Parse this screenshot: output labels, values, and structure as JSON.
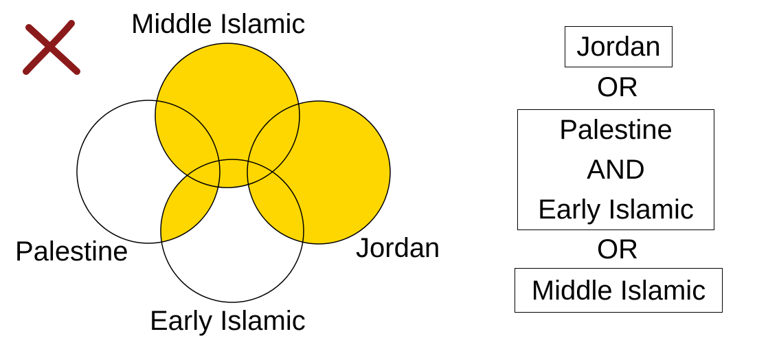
{
  "colors": {
    "fill": "#FFD700",
    "stroke": "#000000",
    "cross": "#8B1A1A"
  },
  "icons": {
    "wrong": "cross-mark-icon"
  },
  "venn": {
    "sets": {
      "middle_islamic": "Middle Islamic",
      "palestine": "Palestine",
      "jordan": "Jordan",
      "early_islamic": "Early Islamic"
    },
    "shaded_regions": [
      "Jordan",
      "Middle Islamic",
      "Palestine AND Early Islamic"
    ]
  },
  "query": {
    "term1": "Jordan",
    "or1": "OR",
    "group": {
      "line1": "Palestine",
      "and": "AND",
      "line2": "Early Islamic"
    },
    "or2": "OR",
    "term3": "Middle Islamic"
  }
}
